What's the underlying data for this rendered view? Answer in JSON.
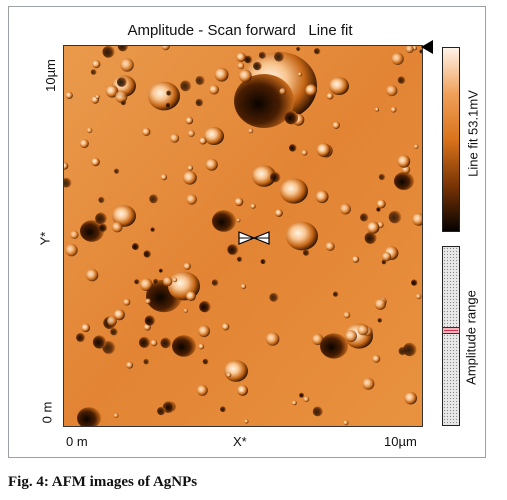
{
  "window": {
    "title": "Amplitude - Scan forward   Line fit"
  },
  "axes": {
    "y_top": "10µm",
    "y_mid": "Y*",
    "y_bottom": "0 m",
    "x_left": "0 m",
    "x_mid": "X*",
    "x_right": "10µm"
  },
  "colorbar": {
    "label": "Line fit 53.1mV",
    "colors": [
      "#fff3e8",
      "#f0a05a",
      "#d9731c",
      "#7a3505",
      "#050200"
    ]
  },
  "range": {
    "label": "Amplitude range"
  },
  "icons": {
    "cursor": "bowtie-cursor-icon",
    "marker": "colorbar-pointer-icon"
  },
  "caption": "Fig. 4: AFM images of AgNPs"
}
